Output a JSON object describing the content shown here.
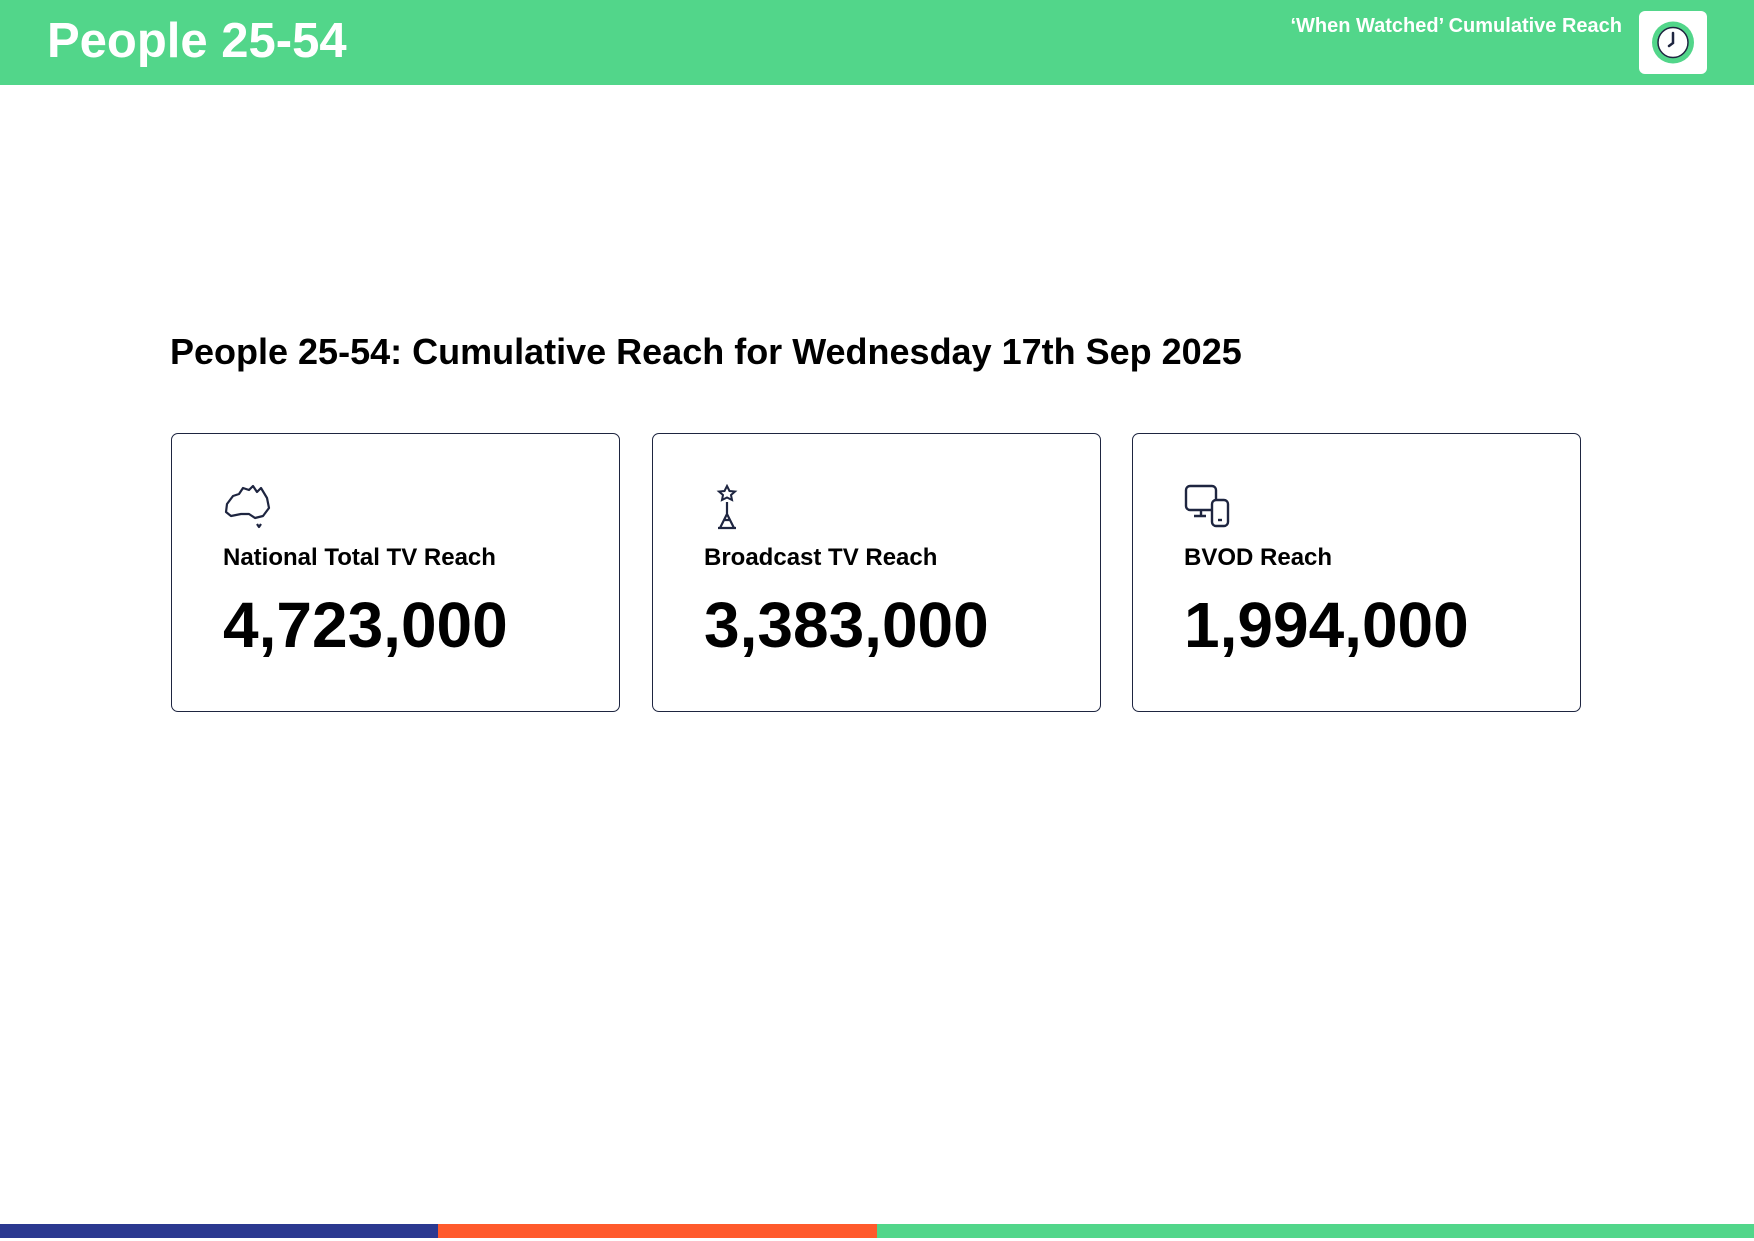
{
  "header": {
    "title": "People 25-54",
    "subtitle": "‘When Watched’ Cumulative Reach"
  },
  "heading": "People 25-54: Cumulative Reach for Wednesday 17th Sep 2025",
  "cards": [
    {
      "label": "National Total TV Reach",
      "value": "4,723,000"
    },
    {
      "label": "Broadcast TV Reach",
      "value": "3,383,000"
    },
    {
      "label": "BVOD Reach",
      "value": "1,994,000"
    }
  ]
}
